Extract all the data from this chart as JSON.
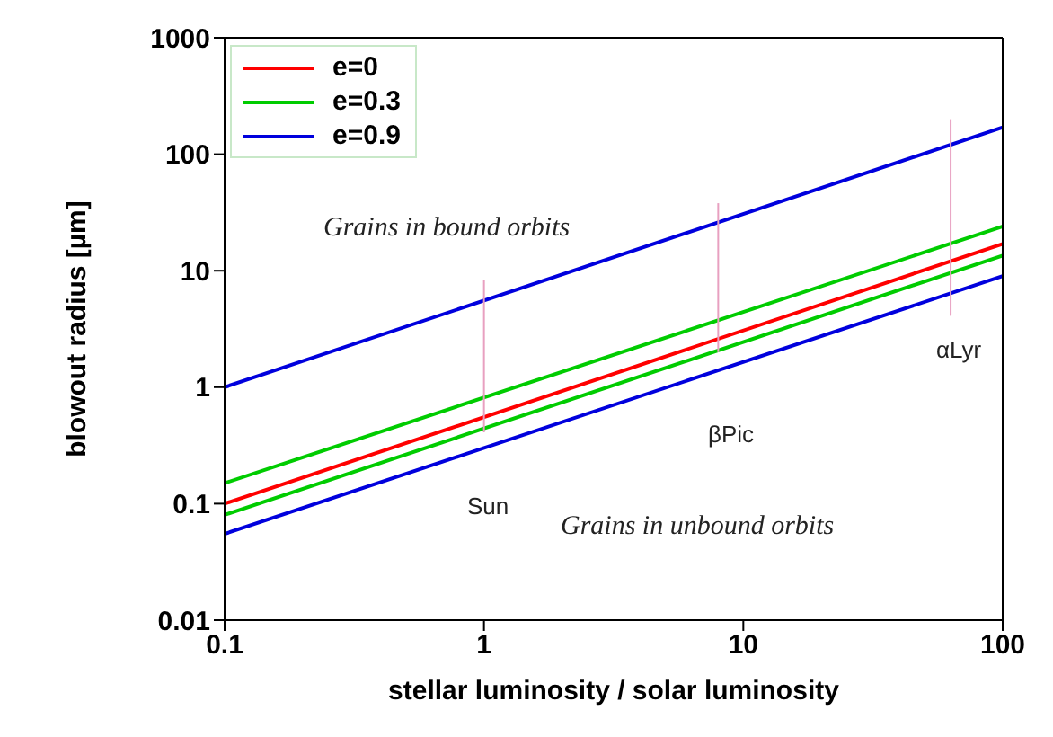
{
  "chart_data": {
    "type": "line",
    "xlabel": "stellar luminosity / solar luminosity",
    "ylabel": "blowout radius [µm]",
    "log": "xy",
    "xlim": [
      0.1,
      100
    ],
    "xticks": [
      0.1,
      1,
      10,
      100
    ],
    "ylim": [
      0.01,
      1000
    ],
    "yticks": [
      0.01,
      0.1,
      1,
      10,
      100,
      1000
    ],
    "grid": false,
    "legend": "top left",
    "marker": "none",
    "line_style": "solid",
    "series": [
      {
        "name": "e=0",
        "color": "#ff0000",
        "x": [
          0.1,
          100
        ],
        "values": [
          0.1,
          17
        ]
      },
      {
        "name": "e=0.3",
        "color": "#00cc00",
        "x": [
          0.1,
          100
        ],
        "values": [
          0.15,
          24
        ]
      },
      {
        "name": "e=0.9",
        "color": "#0000dd",
        "x": [
          0.1,
          100
        ],
        "values": [
          1.0,
          170
        ]
      },
      {
        "color": "#00cc00",
        "x": [
          0.1,
          100
        ],
        "values": [
          0.08,
          13.5
        ]
      },
      {
        "color": "#0000dd",
        "x": [
          0.1,
          100
        ],
        "values": [
          0.055,
          9
        ]
      },
      {
        "color": "#e8a0c0",
        "x": [
          1,
          1
        ],
        "values": [
          0.41,
          8.4
        ]
      },
      {
        "color": "#e8a0c0",
        "x": [
          8,
          8
        ],
        "values": [
          2.0,
          38
        ]
      },
      {
        "color": "#e8a0c0",
        "x": [
          63,
          63
        ],
        "values": [
          4.1,
          200
        ]
      }
    ],
    "annotations": [
      "Sun",
      "βPic",
      "αLyr",
      "Grains in bound orbits",
      "Grains in unbound orbits"
    ]
  }
}
